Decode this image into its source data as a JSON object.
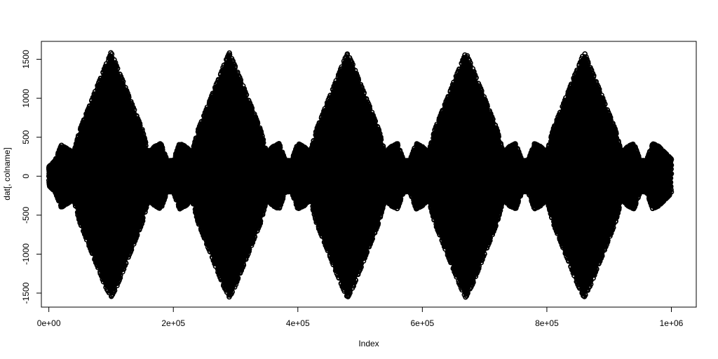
{
  "chart_data": {
    "type": "scatter",
    "title": "",
    "xlabel": "Index",
    "ylabel": "dat[, colname]",
    "xlim": [
      -12000,
      1040000
    ],
    "ylim": [
      -1680,
      1730
    ],
    "x_ticks": [
      0,
      200000,
      400000,
      600000,
      800000,
      1000000
    ],
    "x_tick_labels": [
      "0e+00",
      "2e+05",
      "4e+05",
      "6e+05",
      "8e+05",
      "1e+06"
    ],
    "y_ticks": [
      -1500,
      -1000,
      -500,
      0,
      500,
      1000,
      1500
    ],
    "y_tick_labels": [
      "-1500",
      "-1000",
      "-500",
      "0",
      "500",
      "1000",
      "1500"
    ],
    "point_color": "#000000",
    "grid": false,
    "n_points_approx": 1000000,
    "x_range": [
      0,
      1000000
    ],
    "y_range": [
      -1560,
      1590
    ],
    "envelope": {
      "x": [
        0,
        10000,
        20000,
        30000,
        40000,
        50000,
        60000,
        70000,
        80000,
        90000,
        100000,
        110000,
        120000,
        130000,
        140000,
        150000,
        160000,
        170000,
        180000,
        190000,
        200000,
        210000,
        220000,
        230000,
        240000,
        250000,
        260000,
        270000,
        280000,
        290000,
        300000,
        310000,
        320000,
        330000,
        340000,
        350000,
        360000,
        370000,
        380000,
        390000,
        400000,
        410000,
        420000,
        430000,
        440000,
        450000,
        460000,
        470000,
        480000,
        490000,
        500000,
        510000,
        520000,
        530000,
        540000,
        550000,
        560000,
        570000,
        580000,
        590000,
        600000,
        610000,
        620000,
        630000,
        640000,
        650000,
        660000,
        670000,
        680000,
        690000,
        700000,
        710000,
        720000,
        730000,
        740000,
        750000,
        760000,
        770000,
        780000,
        790000,
        800000,
        810000,
        820000,
        830000,
        840000,
        850000,
        860000,
        870000,
        880000,
        890000,
        900000,
        910000,
        920000,
        930000,
        940000,
        950000,
        960000,
        970000,
        980000,
        990000,
        1000000
      ],
      "upper": [
        120,
        200,
        400,
        350,
        300,
        600,
        800,
        1000,
        1200,
        1400,
        1590,
        1400,
        1200,
        1000,
        800,
        600,
        300,
        380,
        420,
        200,
        200,
        420,
        380,
        300,
        600,
        800,
        1000,
        1200,
        1400,
        1590,
        1400,
        1200,
        1000,
        800,
        600,
        300,
        380,
        420,
        200,
        200,
        420,
        380,
        300,
        600,
        800,
        1000,
        1200,
        1400,
        1590,
        1400,
        1200,
        1000,
        800,
        600,
        300,
        380,
        420,
        200,
        200,
        420,
        380,
        300,
        600,
        800,
        1000,
        1200,
        1400,
        1590,
        1400,
        1200,
        1000,
        800,
        600,
        300,
        380,
        420,
        200,
        200,
        420,
        380,
        300,
        600,
        800,
        1000,
        1200,
        1400,
        1590,
        1400,
        1200,
        1000,
        800,
        600,
        300,
        380,
        420,
        200,
        200,
        420,
        380,
        300,
        220
      ],
      "lower": [
        -120,
        -200,
        -400,
        -350,
        -300,
        -600,
        -800,
        -1000,
        -1200,
        -1400,
        -1560,
        -1400,
        -1200,
        -1000,
        -800,
        -600,
        -300,
        -380,
        -420,
        -200,
        -200,
        -420,
        -380,
        -300,
        -600,
        -800,
        -1000,
        -1200,
        -1400,
        -1560,
        -1400,
        -1200,
        -1000,
        -800,
        -600,
        -300,
        -380,
        -420,
        -200,
        -200,
        -420,
        -380,
        -300,
        -600,
        -800,
        -1000,
        -1200,
        -1400,
        -1560,
        -1400,
        -1200,
        -1000,
        -800,
        -600,
        -300,
        -380,
        -420,
        -200,
        -200,
        -420,
        -380,
        -300,
        -600,
        -800,
        -1000,
        -1200,
        -1400,
        -1560,
        -1400,
        -1200,
        -1000,
        -800,
        -600,
        -300,
        -380,
        -420,
        -200,
        -200,
        -420,
        -380,
        -300,
        -600,
        -800,
        -1000,
        -1200,
        -1400,
        -1560,
        -1400,
        -1200,
        -1000,
        -800,
        -600,
        -300,
        -380,
        -420,
        -200,
        -200,
        -420,
        -380,
        -300,
        -220
      ]
    }
  }
}
